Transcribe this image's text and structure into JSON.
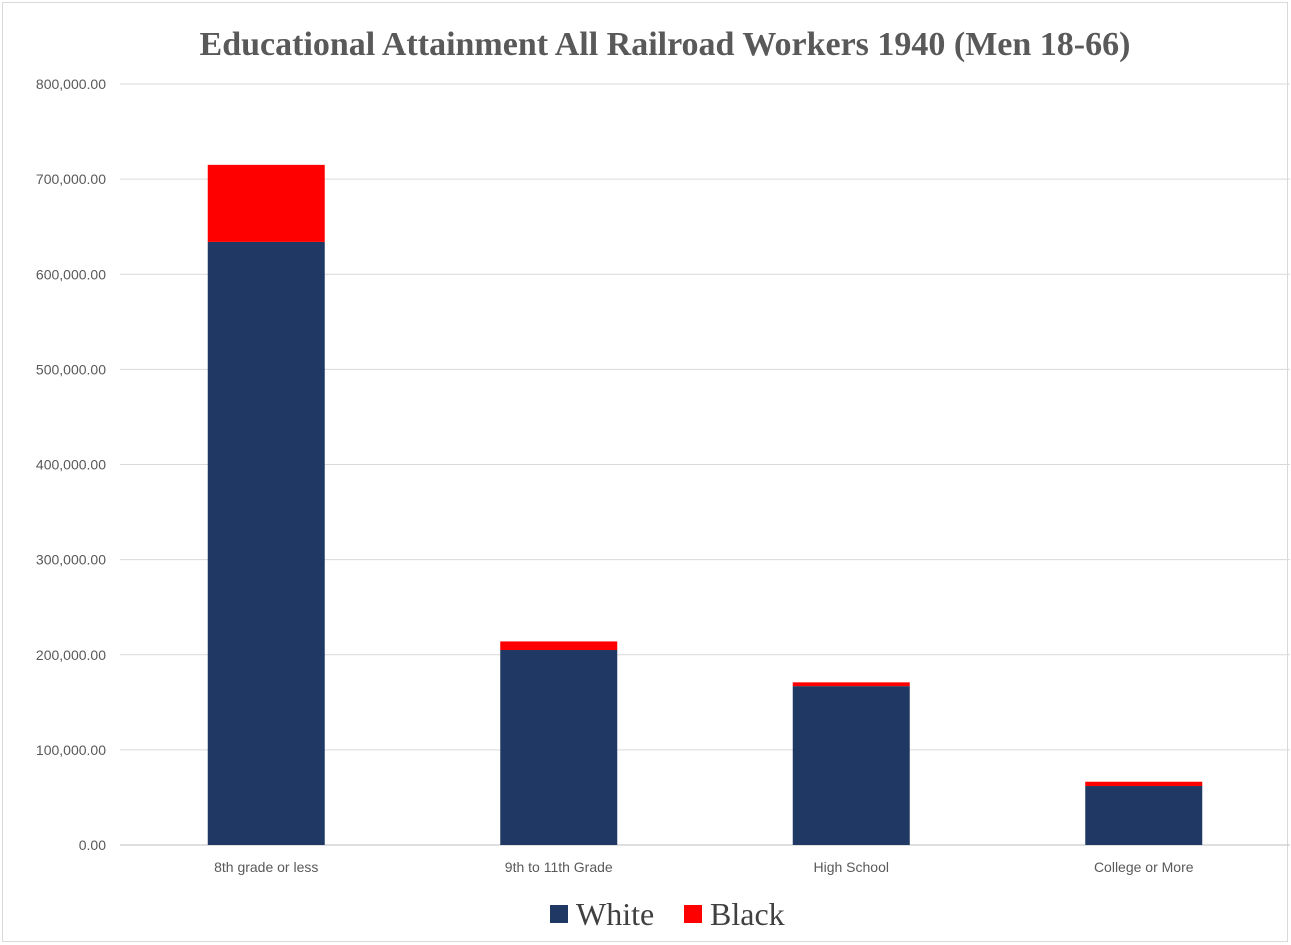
{
  "chart_data": {
    "type": "bar",
    "stacked": true,
    "title": "Educational Attainment All Railroad Workers 1940 (Men 18-66)",
    "xlabel": "",
    "ylabel": "",
    "categories": [
      "8th grade or less",
      "9th to 11th Grade",
      "High School",
      "College or More"
    ],
    "series": [
      {
        "name": "White",
        "color": "#203864",
        "values": [
          634000,
          205000,
          167000,
          62000
        ]
      },
      {
        "name": "Black",
        "color": "#ff0000",
        "values": [
          81000,
          9000,
          4000,
          4500
        ]
      }
    ],
    "ylim": [
      0,
      800000
    ],
    "yticks": [
      "0.00",
      "100,000.00",
      "200,000.00",
      "300,000.00",
      "400,000.00",
      "500,000.00",
      "600,000.00",
      "700,000.00",
      "800,000.00"
    ],
    "grid": true,
    "legend": "bottom"
  }
}
